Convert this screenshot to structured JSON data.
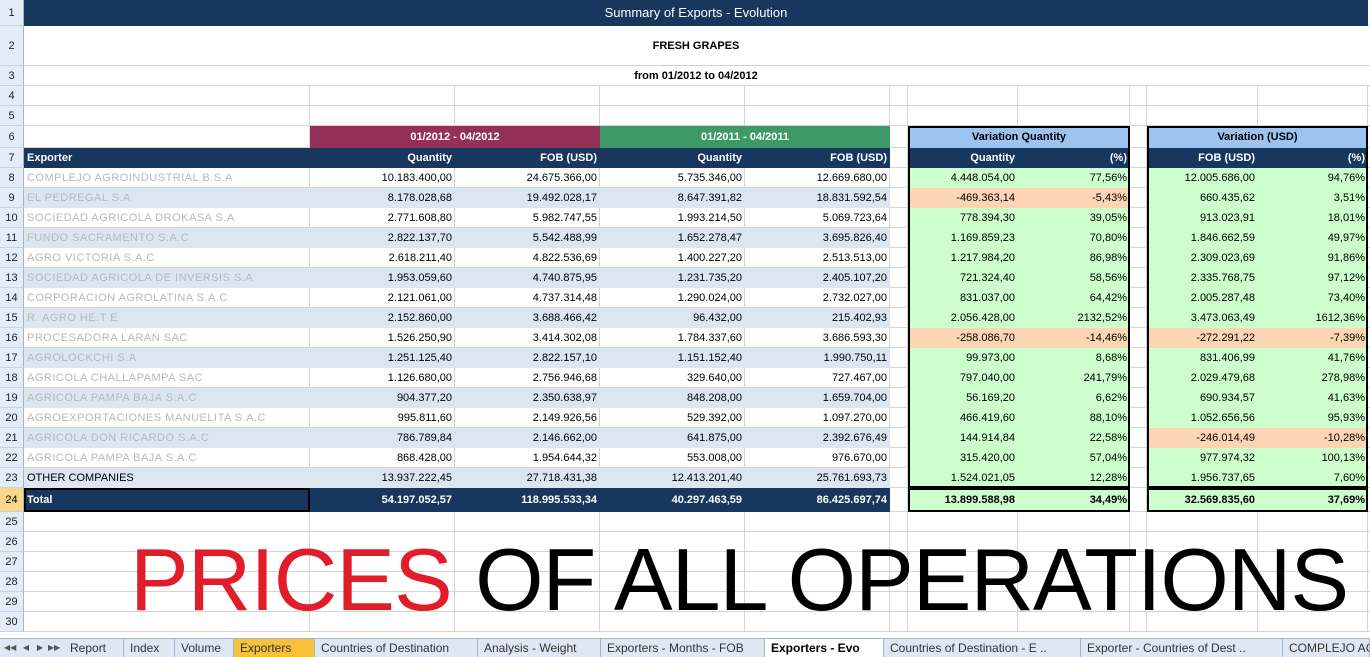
{
  "report": {
    "title": "Summary of Exports - Evolution",
    "product": "FRESH GRAPES",
    "range": "from 01/2012 to 04/2012"
  },
  "period_headers": {
    "current": "01/2012 - 04/2012",
    "previous": "01/2011 - 04/2011",
    "variation_qty": "Variation Quantity",
    "variation_usd": "Variation (USD)"
  },
  "columns": {
    "exporter": "Exporter",
    "quantity": "Quantity",
    "fob": "FOB (USD)",
    "pct": "(%)"
  },
  "rows": [
    {
      "name": "COMPLEJO AGROINDUSTRIAL B.S.A",
      "q1": "10.183.400,00",
      "f1": "24.675.366,00",
      "q0": "5.735.346,00",
      "f0": "12.669.680,00",
      "vq": "4.448.054,00",
      "vqp": "77,56%",
      "vf": "12.005.686,00",
      "vfp": "94,76%",
      "vqneg": false,
      "vfneg": false
    },
    {
      "name": "EL PEDREGAL S.A",
      "q1": "8.178.028,68",
      "f1": "19.492.028,17",
      "q0": "8.647.391,82",
      "f0": "18.831.592,54",
      "vq": "-469.363,14",
      "vqp": "-5,43%",
      "vf": "660.435,62",
      "vfp": "3,51%",
      "vqneg": true,
      "vfneg": false
    },
    {
      "name": "SOCIEDAD AGRICOLA DROKASA S.A",
      "q1": "2.771.608,80",
      "f1": "5.982.747,55",
      "q0": "1.993.214,50",
      "f0": "5.069.723,64",
      "vq": "778.394,30",
      "vqp": "39,05%",
      "vf": "913.023,91",
      "vfp": "18,01%",
      "vqneg": false,
      "vfneg": false
    },
    {
      "name": "FUNDO SACRAMENTO S.A.C",
      "q1": "2.822.137,70",
      "f1": "5.542.488,99",
      "q0": "1.652.278,47",
      "f0": "3.695.826,40",
      "vq": "1.169.859,23",
      "vqp": "70,80%",
      "vf": "1.846.662,59",
      "vfp": "49,97%",
      "vqneg": false,
      "vfneg": false
    },
    {
      "name": "AGRO VICTORIA S.A.C",
      "q1": "2.618.211,40",
      "f1": "4.822.536,69",
      "q0": "1.400.227,20",
      "f0": "2.513.513,00",
      "vq": "1.217.984,20",
      "vqp": "86,98%",
      "vf": "2.309.023,69",
      "vfp": "91,86%",
      "vqneg": false,
      "vfneg": false
    },
    {
      "name": "SOCIEDAD AGRICOLA DE INVERSIS S.A",
      "q1": "1.953.059,60",
      "f1": "4.740.875,95",
      "q0": "1.231.735,20",
      "f0": "2.405.107,20",
      "vq": "721.324,40",
      "vqp": "58,56%",
      "vf": "2.335.768,75",
      "vfp": "97,12%",
      "vqneg": false,
      "vfneg": false
    },
    {
      "name": "CORPORACION AGROLATINA S.A.C",
      "q1": "2.121.061,00",
      "f1": "4.737.314,48",
      "q0": "1.290.024,00",
      "f0": "2.732.027,00",
      "vq": "831.037,00",
      "vqp": "64,42%",
      "vf": "2.005.287,48",
      "vfp": "73,40%",
      "vqneg": false,
      "vfneg": false
    },
    {
      "name": "R. AGRO HE.T E",
      "q1": "2.152.860,00",
      "f1": "3.688.466,42",
      "q0": "96.432,00",
      "f0": "215.402,93",
      "vq": "2.056.428,00",
      "vqp": "2132,52%",
      "vf": "3.473.063,49",
      "vfp": "1612,36%",
      "vqneg": false,
      "vfneg": false
    },
    {
      "name": "PROCESADORA LARAN SAC",
      "q1": "1.526.250,90",
      "f1": "3.414.302,08",
      "q0": "1.784.337,60",
      "f0": "3.686.593,30",
      "vq": "-258.086,70",
      "vqp": "-14,46%",
      "vf": "-272.291,22",
      "vfp": "-7,39%",
      "vqneg": true,
      "vfneg": true
    },
    {
      "name": "AGROLOCKCHI S.A",
      "q1": "1.251.125,40",
      "f1": "2.822.157,10",
      "q0": "1.151.152,40",
      "f0": "1.990.750,11",
      "vq": "99.973,00",
      "vqp": "8,68%",
      "vf": "831.406,99",
      "vfp": "41,76%",
      "vqneg": false,
      "vfneg": false
    },
    {
      "name": "AGRICOLA CHALLAPAMPA SAC",
      "q1": "1.126.680,00",
      "f1": "2.756.946,68",
      "q0": "329.640,00",
      "f0": "727.467,00",
      "vq": "797.040,00",
      "vqp": "241,79%",
      "vf": "2.029.479,68",
      "vfp": "278,98%",
      "vqneg": false,
      "vfneg": false
    },
    {
      "name": "AGRICOLA PAMPA BAJA S.A.C",
      "q1": "904.377,20",
      "f1": "2.350.638,97",
      "q0": "848.208,00",
      "f0": "1.659.704,00",
      "vq": "56.169,20",
      "vqp": "6,62%",
      "vf": "690.934,57",
      "vfp": "41,63%",
      "vqneg": false,
      "vfneg": false
    },
    {
      "name": "AGROEXPORTACIONES MANUELITA S.A.C",
      "q1": "995.811,60",
      "f1": "2.149.926,56",
      "q0": "529.392,00",
      "f0": "1.097.270,00",
      "vq": "466.419,60",
      "vqp": "88,10%",
      "vf": "1.052.656,56",
      "vfp": "95,93%",
      "vqneg": false,
      "vfneg": false
    },
    {
      "name": "AGRICOLA DON RICARDO S.A.C",
      "q1": "786.789,84",
      "f1": "2.146.662,00",
      "q0": "641.875,00",
      "f0": "2.392.676,49",
      "vq": "144.914,84",
      "vqp": "22,58%",
      "vf": "-246.014,49",
      "vfp": "-10,28%",
      "vqneg": false,
      "vfneg": true
    },
    {
      "name": "AGRICOLA PAMPA BAJA S.A.C",
      "q1": "868.428,00",
      "f1": "1.954.644,32",
      "q0": "553.008,00",
      "f0": "976.670,00",
      "vq": "315.420,00",
      "vqp": "57,04%",
      "vf": "977.974,32",
      "vfp": "100,13%",
      "vqneg": false,
      "vfneg": false
    },
    {
      "name": "OTHER COMPANIES",
      "q1": "13.937.222,45",
      "f1": "27.718.431,38",
      "q0": "12.413.201,40",
      "f0": "25.761.693,73",
      "vq": "1.524.021,05",
      "vqp": "12,28%",
      "vf": "1.956.737,65",
      "vfp": "7,60%",
      "vqneg": false,
      "vfneg": false
    }
  ],
  "total": {
    "name": "Total",
    "q1": "54.197.052,57",
    "f1": "118.995.533,34",
    "q0": "40.297.463,59",
    "f0": "86.425.697,74",
    "vq": "13.899.588,98",
    "vqp": "34,49%",
    "vf": "32.569.835,60",
    "vfp": "37,69%"
  },
  "row_numbers": [
    "1",
    "2",
    "3",
    "4",
    "5",
    "6",
    "7",
    "8",
    "9",
    "10",
    "11",
    "12",
    "13",
    "14",
    "15",
    "16",
    "17",
    "18",
    "19",
    "20",
    "21",
    "22",
    "23",
    "24",
    "25",
    "26",
    "27",
    "28",
    "29",
    "30"
  ],
  "banner": {
    "red": "PRICES",
    "black": " OF ALL OPERATIONS"
  },
  "tabs": [
    "Report",
    "Index",
    "Volume",
    "Exporters",
    "Countries of Destination",
    "Analysis - Weight",
    "Exporters - Months - FOB",
    "Exporters - Evo",
    "Countries of Destination - E ..",
    "Exporter - Countries of Dest ..",
    "COMPLEJO AG"
  ],
  "active_tab": "Exporters - Evo",
  "colors": {
    "navy": "#17375e",
    "maroon": "#953158",
    "green_header": "#3d9a66",
    "light_blue": "#9dc3f0",
    "positive": "#ccffcc",
    "negative": "#fcd5b4",
    "banner_red": "#e11d2a"
  }
}
